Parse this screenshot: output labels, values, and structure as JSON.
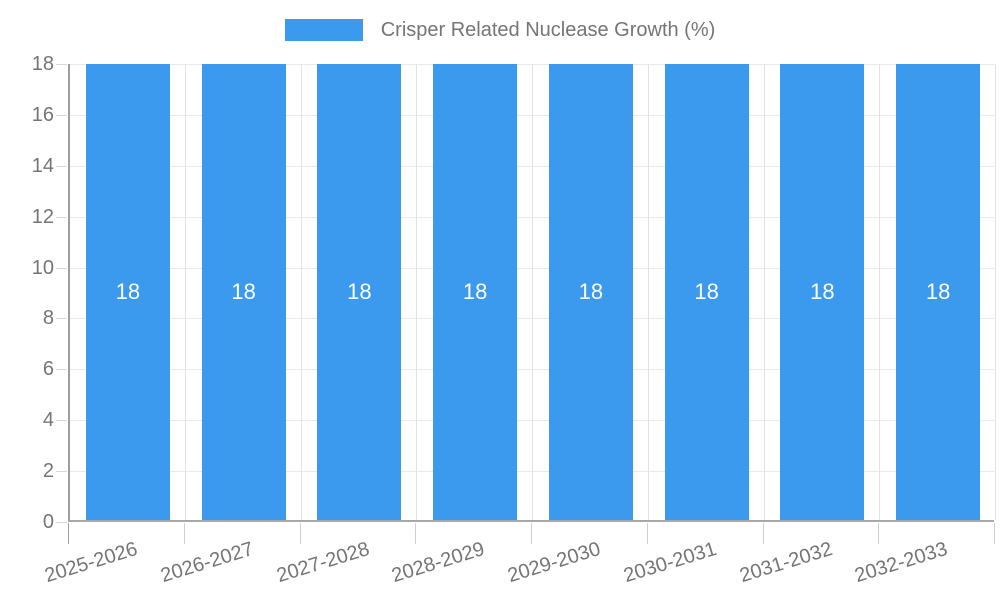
{
  "chart_data": {
    "type": "bar",
    "title": "Crisper Related Nuclease Growth (%)",
    "legend": {
      "label": "Crisper Related Nuclease Growth (%)",
      "position": "top-center",
      "swatch": "legend-swatch"
    },
    "categories": [
      "2025-2026",
      "2026-2027",
      "2027-2028",
      "2028-2029",
      "2029-2030",
      "2030-2031",
      "2031-2032",
      "2032-2033"
    ],
    "values": [
      18,
      18,
      18,
      18,
      18,
      18,
      18,
      18
    ],
    "bar_value_labels": [
      "18",
      "18",
      "18",
      "18",
      "18",
      "18",
      "18",
      "18"
    ],
    "xlabel": "",
    "ylabel": "",
    "ylim": [
      0,
      18
    ],
    "yticks": [
      0,
      2,
      4,
      6,
      8,
      10,
      12,
      14,
      16,
      18
    ],
    "grid": true,
    "x_label_rotation_deg": -17,
    "colors": {
      "bar": "#3b99ee",
      "grid_h": "#e9e9e9",
      "grid_v": "#e2e2e2",
      "axis": "#9e9e9e",
      "tick_label": "#757575",
      "legend_text": "#757575",
      "value_label": "#ffffff",
      "background": "#ffffff"
    }
  }
}
